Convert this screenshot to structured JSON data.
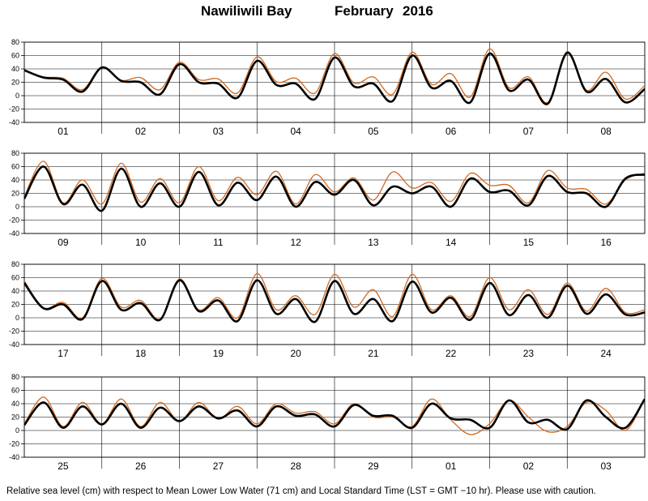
{
  "title": {
    "station": "Nawiliwili Bay",
    "month": "February",
    "year": "2016"
  },
  "footer": "Relative sea level (cm) with respect to Mean Lower Low Water (71 cm) and Local Standard Time (LST = GMT −10 hr). Please use with caution.",
  "colors": {
    "observed": "#000000",
    "predicted": "#d2691e",
    "grid": "#000000"
  },
  "chart_data": {
    "type": "line",
    "ylabel": "",
    "ylim": [
      -40,
      80
    ],
    "yticks": [
      80,
      60,
      40,
      20,
      0,
      -20,
      -40
    ],
    "grid": true,
    "series_names": [
      "",
      ""
    ],
    "panels": [
      {
        "days": [
          "01",
          "02",
          "03",
          "04",
          "05",
          "06",
          "07",
          "08"
        ],
        "observed": [
          [
            0,
            38
          ],
          [
            6,
            27
          ],
          [
            12,
            24
          ],
          [
            18,
            6
          ],
          [
            24,
            42
          ],
          [
            30,
            22
          ],
          [
            36,
            20
          ],
          [
            42,
            2
          ],
          [
            48,
            47
          ],
          [
            54,
            20
          ],
          [
            60,
            18
          ],
          [
            66,
            -3
          ],
          [
            72,
            52
          ],
          [
            78,
            16
          ],
          [
            84,
            18
          ],
          [
            90,
            -5
          ],
          [
            96,
            57
          ],
          [
            102,
            14
          ],
          [
            108,
            18
          ],
          [
            114,
            -8
          ],
          [
            120,
            60
          ],
          [
            126,
            12
          ],
          [
            132,
            22
          ],
          [
            138,
            -10
          ],
          [
            144,
            63
          ],
          [
            150,
            8
          ],
          [
            156,
            24
          ],
          [
            162,
            -12
          ],
          [
            168,
            64
          ],
          [
            174,
            6
          ],
          [
            180,
            25
          ],
          [
            186,
            -10
          ],
          [
            192,
            10
          ]
        ],
        "predicted": [
          [
            0,
            38
          ],
          [
            6,
            28
          ],
          [
            12,
            26
          ],
          [
            18,
            9
          ],
          [
            24,
            43
          ],
          [
            30,
            23
          ],
          [
            36,
            27
          ],
          [
            42,
            9
          ],
          [
            48,
            50
          ],
          [
            54,
            24
          ],
          [
            60,
            25
          ],
          [
            66,
            4
          ],
          [
            72,
            58
          ],
          [
            78,
            21
          ],
          [
            84,
            26
          ],
          [
            90,
            4
          ],
          [
            96,
            63
          ],
          [
            102,
            19
          ],
          [
            108,
            28
          ],
          [
            114,
            2
          ],
          [
            120,
            65
          ],
          [
            126,
            17
          ],
          [
            132,
            33
          ],
          [
            138,
            -2
          ],
          [
            144,
            70
          ],
          [
            150,
            12
          ],
          [
            156,
            28
          ],
          [
            162,
            -10
          ],
          [
            168,
            66
          ],
          [
            174,
            8
          ],
          [
            180,
            35
          ],
          [
            186,
            -5
          ],
          [
            192,
            15
          ]
        ]
      },
      {
        "days": [
          "09",
          "10",
          "11",
          "12",
          "13",
          "14",
          "15",
          "16"
        ],
        "observed": [
          [
            0,
            12
          ],
          [
            6,
            60
          ],
          [
            12,
            4
          ],
          [
            18,
            33
          ],
          [
            24,
            -6
          ],
          [
            30,
            57
          ],
          [
            36,
            0
          ],
          [
            42,
            35
          ],
          [
            48,
            0
          ],
          [
            54,
            52
          ],
          [
            60,
            2
          ],
          [
            66,
            36
          ],
          [
            72,
            10
          ],
          [
            78,
            45
          ],
          [
            84,
            0
          ],
          [
            90,
            37
          ],
          [
            96,
            18
          ],
          [
            102,
            40
          ],
          [
            108,
            2
          ],
          [
            114,
            30
          ],
          [
            120,
            20
          ],
          [
            126,
            30
          ],
          [
            132,
            0
          ],
          [
            138,
            42
          ],
          [
            144,
            22
          ],
          [
            150,
            24
          ],
          [
            156,
            2
          ],
          [
            162,
            46
          ],
          [
            168,
            22
          ],
          [
            174,
            20
          ],
          [
            180,
            0
          ],
          [
            186,
            42
          ],
          [
            192,
            48
          ]
        ],
        "predicted": [
          [
            0,
            15
          ],
          [
            6,
            68
          ],
          [
            12,
            6
          ],
          [
            18,
            40
          ],
          [
            24,
            4
          ],
          [
            30,
            65
          ],
          [
            36,
            7
          ],
          [
            42,
            42
          ],
          [
            48,
            6
          ],
          [
            54,
            60
          ],
          [
            60,
            9
          ],
          [
            66,
            44
          ],
          [
            72,
            18
          ],
          [
            78,
            53
          ],
          [
            84,
            4
          ],
          [
            90,
            48
          ],
          [
            96,
            22
          ],
          [
            102,
            43
          ],
          [
            108,
            10
          ],
          [
            114,
            52
          ],
          [
            120,
            28
          ],
          [
            126,
            36
          ],
          [
            132,
            8
          ],
          [
            138,
            50
          ],
          [
            144,
            32
          ],
          [
            150,
            32
          ],
          [
            156,
            6
          ],
          [
            162,
            54
          ],
          [
            168,
            28
          ],
          [
            174,
            26
          ],
          [
            180,
            4
          ],
          [
            186,
            40
          ],
          [
            192,
            50
          ]
        ]
      },
      {
        "days": [
          "17",
          "18",
          "19",
          "20",
          "21",
          "22",
          "23",
          "24"
        ],
        "observed": [
          [
            0,
            52
          ],
          [
            6,
            14
          ],
          [
            12,
            20
          ],
          [
            18,
            -2
          ],
          [
            24,
            55
          ],
          [
            30,
            12
          ],
          [
            36,
            22
          ],
          [
            42,
            -3
          ],
          [
            48,
            56
          ],
          [
            54,
            10
          ],
          [
            60,
            26
          ],
          [
            66,
            -5
          ],
          [
            72,
            56
          ],
          [
            78,
            6
          ],
          [
            84,
            28
          ],
          [
            90,
            -6
          ],
          [
            96,
            55
          ],
          [
            102,
            6
          ],
          [
            108,
            28
          ],
          [
            114,
            -5
          ],
          [
            120,
            54
          ],
          [
            126,
            8
          ],
          [
            132,
            30
          ],
          [
            138,
            -3
          ],
          [
            144,
            52
          ],
          [
            150,
            4
          ],
          [
            156,
            34
          ],
          [
            162,
            0
          ],
          [
            168,
            48
          ],
          [
            174,
            6
          ],
          [
            180,
            35
          ],
          [
            186,
            5
          ],
          [
            192,
            8
          ]
        ],
        "predicted": [
          [
            0,
            55
          ],
          [
            6,
            15
          ],
          [
            12,
            23
          ],
          [
            18,
            0
          ],
          [
            24,
            59
          ],
          [
            30,
            16
          ],
          [
            36,
            26
          ],
          [
            42,
            -2
          ],
          [
            48,
            58
          ],
          [
            54,
            12
          ],
          [
            60,
            30
          ],
          [
            66,
            0
          ],
          [
            72,
            66
          ],
          [
            78,
            12
          ],
          [
            84,
            33
          ],
          [
            90,
            5
          ],
          [
            96,
            65
          ],
          [
            102,
            16
          ],
          [
            108,
            42
          ],
          [
            114,
            2
          ],
          [
            120,
            65
          ],
          [
            126,
            12
          ],
          [
            132,
            33
          ],
          [
            138,
            2
          ],
          [
            144,
            60
          ],
          [
            150,
            12
          ],
          [
            156,
            42
          ],
          [
            162,
            5
          ],
          [
            168,
            52
          ],
          [
            174,
            10
          ],
          [
            180,
            44
          ],
          [
            186,
            8
          ],
          [
            192,
            12
          ]
        ]
      },
      {
        "days": [
          "25",
          "26",
          "27",
          "28",
          "29",
          "01",
          "02",
          "03"
        ],
        "observed": [
          [
            0,
            8
          ],
          [
            6,
            42
          ],
          [
            12,
            4
          ],
          [
            18,
            36
          ],
          [
            24,
            9
          ],
          [
            30,
            40
          ],
          [
            36,
            4
          ],
          [
            42,
            34
          ],
          [
            48,
            14
          ],
          [
            54,
            36
          ],
          [
            60,
            18
          ],
          [
            66,
            30
          ],
          [
            72,
            6
          ],
          [
            78,
            36
          ],
          [
            84,
            22
          ],
          [
            90,
            24
          ],
          [
            96,
            6
          ],
          [
            102,
            38
          ],
          [
            108,
            22
          ],
          [
            114,
            22
          ],
          [
            120,
            4
          ],
          [
            126,
            40
          ],
          [
            132,
            18
          ],
          [
            138,
            16
          ],
          [
            144,
            4
          ],
          [
            150,
            45
          ],
          [
            156,
            12
          ],
          [
            162,
            16
          ],
          [
            168,
            2
          ],
          [
            174,
            45
          ],
          [
            180,
            20
          ],
          [
            186,
            4
          ],
          [
            192,
            47
          ]
        ],
        "predicted": [
          [
            0,
            10
          ],
          [
            6,
            50
          ],
          [
            12,
            6
          ],
          [
            18,
            42
          ],
          [
            24,
            10
          ],
          [
            30,
            47
          ],
          [
            36,
            6
          ],
          [
            42,
            42
          ],
          [
            48,
            14
          ],
          [
            54,
            42
          ],
          [
            60,
            17
          ],
          [
            66,
            36
          ],
          [
            72,
            10
          ],
          [
            78,
            40
          ],
          [
            84,
            26
          ],
          [
            90,
            28
          ],
          [
            96,
            10
          ],
          [
            102,
            40
          ],
          [
            108,
            20
          ],
          [
            114,
            20
          ],
          [
            120,
            6
          ],
          [
            126,
            47
          ],
          [
            132,
            16
          ],
          [
            138,
            -6
          ],
          [
            144,
            10
          ],
          [
            150,
            45
          ],
          [
            156,
            20
          ],
          [
            162,
            -2
          ],
          [
            168,
            6
          ],
          [
            174,
            42
          ],
          [
            180,
            30
          ],
          [
            186,
            0
          ],
          [
            192,
            47
          ]
        ]
      }
    ]
  }
}
